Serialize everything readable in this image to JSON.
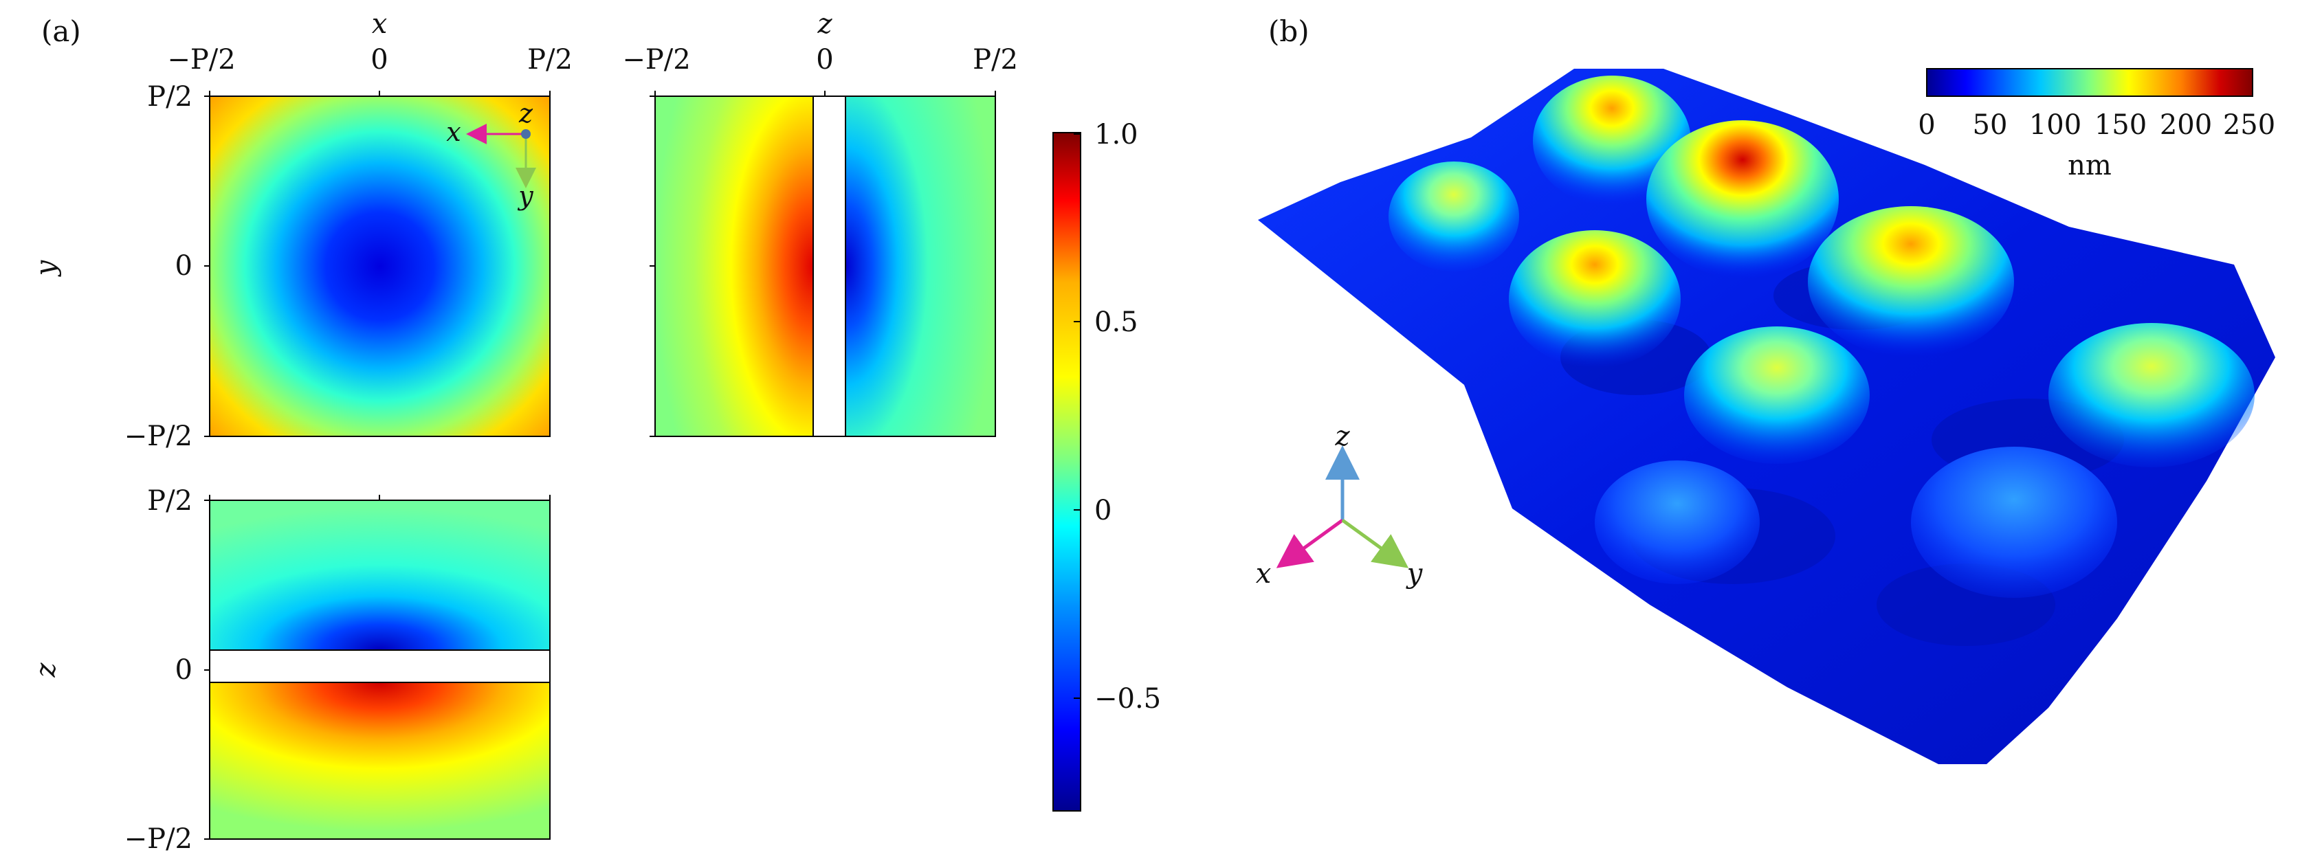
{
  "panel_a": {
    "label": "(a)",
    "top_xy": {
      "top_axis_label": "x",
      "left_axis_label": "y",
      "x_ticks": [
        "−P/2",
        "0",
        "P/2"
      ],
      "y_ticks": [
        "P/2",
        "0",
        "−P/2"
      ],
      "inset_axes": {
        "x": "x",
        "y": "y",
        "z": "z"
      }
    },
    "top_zy": {
      "top_axis_label": "z",
      "x_ticks": [
        "−P/2",
        "0",
        "P/2"
      ]
    },
    "bottom_xz": {
      "left_axis_label": "z",
      "y_ticks": [
        "P/2",
        "0",
        "−P/2"
      ]
    },
    "colorbar": {
      "ticks": [
        "1.0",
        "0.5",
        "0",
        "−0.5"
      ],
      "colors": [
        "#7f0000",
        "#ff0000",
        "#ffb000",
        "#ffff00",
        "#7fff7f",
        "#00ffff",
        "#0090ff",
        "#0000ff",
        "#00008f"
      ]
    }
  },
  "panel_b": {
    "label": "(b)",
    "colorbar": {
      "ticks": [
        "0",
        "50",
        "100",
        "150",
        "200",
        "250"
      ],
      "unit": "nm",
      "colors": [
        "#00008f",
        "#0000ff",
        "#00c8ff",
        "#80ff80",
        "#ffff00",
        "#ff8000",
        "#d00000",
        "#800000"
      ]
    },
    "axes": {
      "x": "x",
      "y": "y",
      "z": "z"
    },
    "axis_colors": {
      "x": "#e0209b",
      "y": "#8cc850",
      "z": "#5b9bd5"
    }
  }
}
